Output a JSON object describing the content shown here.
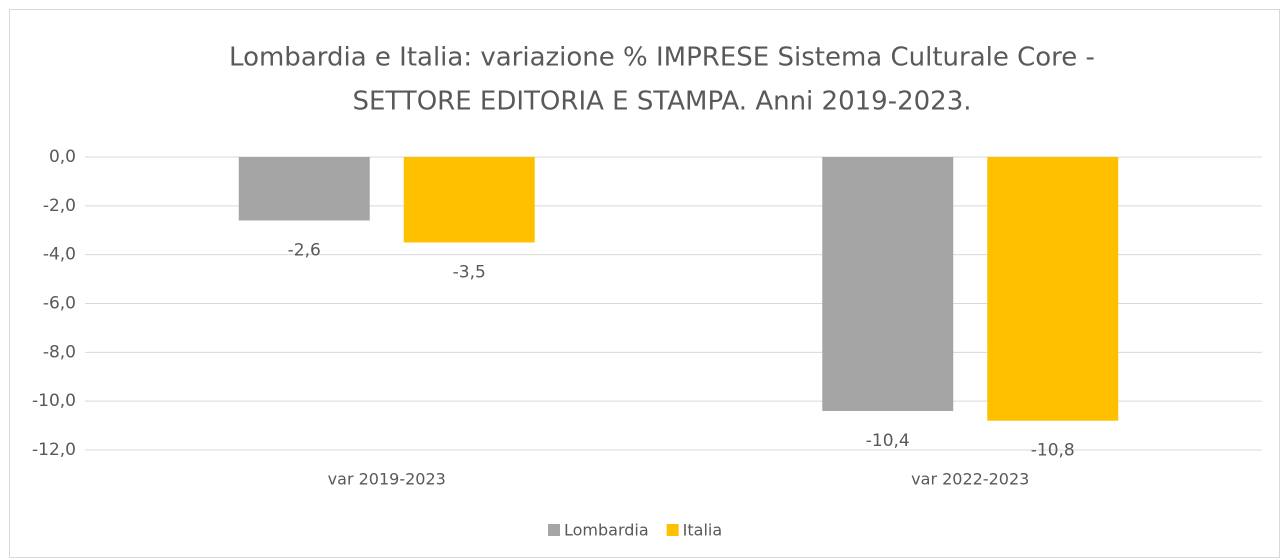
{
  "chart_data": {
    "type": "bar",
    "title": [
      "Lombardia e Italia: variazione % IMPRESE Sistema Culturale Core -",
      "SETTORE EDITORIA E STAMPA. Anni 2019-2023."
    ],
    "categories": [
      "var 2019-2023",
      "var 2022-2023"
    ],
    "series": [
      {
        "name": "Lombardia",
        "color": "#a5a5a5",
        "values": [
          -2.6,
          -10.4
        ],
        "value_labels": [
          "-2,6",
          "-10,4"
        ]
      },
      {
        "name": "Italia",
        "color": "#ffc000",
        "values": [
          -3.5,
          -10.8
        ],
        "value_labels": [
          "-3,5",
          "-10,8"
        ]
      }
    ],
    "ylim": [
      -12,
      0
    ],
    "yticks": [
      {
        "value": 0,
        "label": "0,0"
      },
      {
        "value": -2,
        "label": "-2,0"
      },
      {
        "value": -4,
        "label": "-4,0"
      },
      {
        "value": -6,
        "label": "-6,0"
      },
      {
        "value": -8,
        "label": "-8,0"
      },
      {
        "value": -10,
        "label": "-10,0"
      },
      {
        "value": -12,
        "label": "-12,0"
      }
    ],
    "grid": true,
    "legend": "bottom"
  }
}
